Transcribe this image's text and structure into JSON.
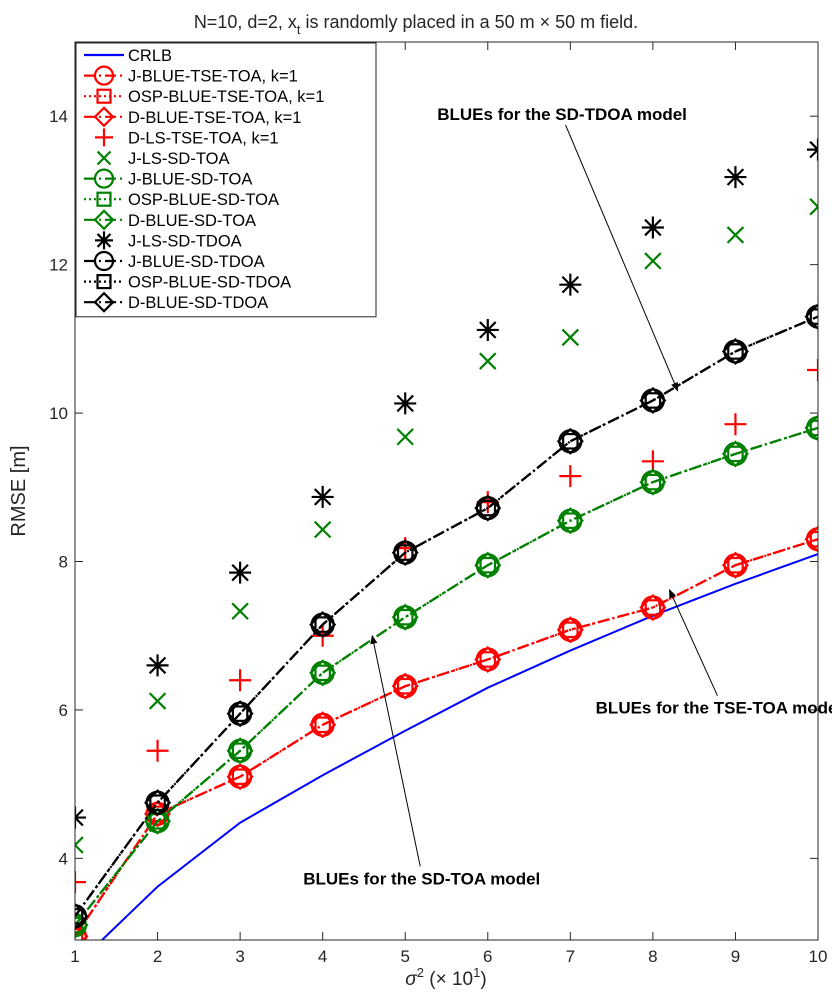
{
  "chart_data": {
    "type": "line",
    "title": "N=10, d=2, x",
    "title_sub": "t",
    "title_rest": " is randomly placed in a 50 m × 50 m field.",
    "xlabel_prefix": "σ",
    "xlabel_sup": "2",
    "xlabel_mid": " (× 10",
    "xlabel_sup2": "1",
    "xlabel_suffix": ")",
    "ylabel": "RMSE [m]",
    "xlim": [
      1,
      10
    ],
    "ylim": [
      2.9,
      15
    ],
    "x_ticks": [
      1,
      2,
      3,
      4,
      5,
      6,
      7,
      8,
      9,
      10
    ],
    "y_ticks": [
      4,
      6,
      8,
      10,
      12,
      14
    ],
    "x": [
      1,
      2,
      3,
      4,
      5,
      6,
      7,
      8,
      9,
      10
    ],
    "grid": false,
    "legend_position": "top-left",
    "series": [
      {
        "name": "CRLB",
        "color": "#0000ff",
        "line": "solid",
        "marker": "none",
        "values": [
          2.55,
          3.62,
          4.48,
          5.12,
          5.72,
          6.3,
          6.8,
          7.27,
          7.7,
          8.1
        ]
      },
      {
        "name": "J-BLUE-TSE-TOA, k=1",
        "color": "#ff0000",
        "line": "dashdot",
        "marker": "circle",
        "values": [
          2.95,
          4.6,
          5.1,
          5.8,
          6.32,
          6.68,
          7.08,
          7.38,
          7.95,
          8.3
        ]
      },
      {
        "name": "OSP-BLUE-TSE-TOA, k=1",
        "color": "#ff0000",
        "line": "dotted",
        "marker": "square",
        "values": [
          2.95,
          4.6,
          5.1,
          5.8,
          6.32,
          6.68,
          7.08,
          7.38,
          7.95,
          8.3
        ]
      },
      {
        "name": "D-BLUE-TSE-TOA, k=1",
        "color": "#ff0000",
        "line": "dashdot",
        "marker": "diamond",
        "values": [
          2.95,
          4.6,
          5.1,
          5.8,
          6.32,
          6.68,
          7.08,
          7.38,
          7.95,
          8.3
        ]
      },
      {
        "name": "D-LS-TSE-TOA, k=1",
        "color": "#ff0000",
        "line": "none",
        "marker": "plus",
        "values": [
          3.68,
          5.45,
          6.4,
          7.0,
          8.18,
          8.8,
          9.15,
          9.35,
          9.85,
          10.58
        ]
      },
      {
        "name": "J-LS-SD-TOA",
        "color": "#008000",
        "line": "none",
        "marker": "x",
        "values": [
          4.18,
          6.12,
          7.33,
          8.43,
          9.68,
          10.7,
          11.02,
          12.05,
          12.4,
          12.78
        ]
      },
      {
        "name": "J-BLUE-SD-TOA",
        "color": "#008000",
        "line": "dashdot",
        "marker": "circle",
        "values": [
          3.1,
          4.5,
          5.45,
          6.5,
          7.25,
          7.95,
          8.55,
          9.07,
          9.45,
          9.8
        ]
      },
      {
        "name": "OSP-BLUE-SD-TOA",
        "color": "#008000",
        "line": "dotted",
        "marker": "square",
        "values": [
          3.1,
          4.5,
          5.45,
          6.5,
          7.25,
          7.95,
          8.55,
          9.07,
          9.45,
          9.8
        ]
      },
      {
        "name": "D-BLUE-SD-TOA",
        "color": "#008000",
        "line": "dashdot",
        "marker": "diamond",
        "values": [
          3.1,
          4.5,
          5.45,
          6.5,
          7.25,
          7.95,
          8.55,
          9.07,
          9.45,
          9.8
        ]
      },
      {
        "name": "J-LS-SD-TDOA",
        "color": "#000000",
        "line": "none",
        "marker": "asterisk",
        "values": [
          4.55,
          6.6,
          7.85,
          8.87,
          10.13,
          11.12,
          11.73,
          12.5,
          13.18,
          13.55
        ]
      },
      {
        "name": "J-BLUE-SD-TDOA",
        "color": "#000000",
        "line": "dashdot",
        "marker": "circle",
        "values": [
          3.22,
          4.75,
          5.95,
          7.15,
          8.12,
          8.72,
          9.62,
          10.17,
          10.83,
          11.3
        ]
      },
      {
        "name": "OSP-BLUE-SD-TDOA",
        "color": "#000000",
        "line": "dotted",
        "marker": "square",
        "values": [
          3.22,
          4.75,
          5.95,
          7.15,
          8.12,
          8.72,
          9.62,
          10.17,
          10.83,
          11.3
        ]
      },
      {
        "name": "D-BLUE-SD-TDOA",
        "color": "#000000",
        "line": "dashdot",
        "marker": "diamond",
        "values": [
          3.22,
          4.75,
          5.95,
          7.15,
          8.12,
          8.72,
          9.62,
          10.17,
          10.83,
          11.3
        ]
      }
    ],
    "annotations": [
      {
        "text": "BLUEs for the SD-TDOA model",
        "label_x": 6.9,
        "label_y": 13.95,
        "arrow_to_x": 8.3,
        "arrow_to_y": 10.3
      },
      {
        "text": "BLUEs for the TSE-TOA model",
        "label_x": 8.8,
        "label_y": 5.95,
        "arrow_to_x": 8.2,
        "arrow_to_y": 7.62
      },
      {
        "text": "BLUEs for the SD-TOA model",
        "label_x": 5.2,
        "label_y": 3.65,
        "arrow_to_x": 4.6,
        "arrow_to_y": 7.0
      }
    ]
  }
}
